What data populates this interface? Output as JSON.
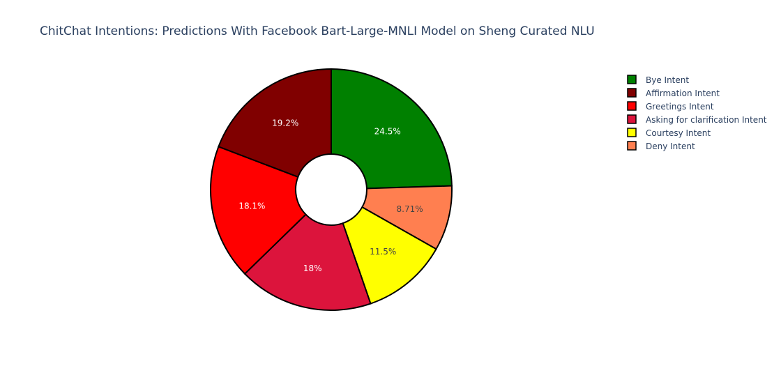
{
  "chart_data": {
    "type": "pie",
    "hole": true,
    "title": "ChitChat Intentions:  Predictions With Facebook Bart-Large-MNLI Model on Sheng Curated NLU",
    "legend_position": "top-right",
    "slices": [
      {
        "label": "Bye Intent",
        "value": 24.5,
        "text": "24.5%",
        "color": "#008000",
        "text_color": "#ffffff"
      },
      {
        "label": "Deny Intent",
        "value": 8.71,
        "text": "8.71%",
        "color": "#ff7f50",
        "text_color": "#444444"
      },
      {
        "label": "Courtesy Intent",
        "value": 11.5,
        "text": "11.5%",
        "color": "#ffff00",
        "text_color": "#444444"
      },
      {
        "label": "Asking for clarification Intent",
        "value": 18.0,
        "text": "18%",
        "color": "#dc143c",
        "text_color": "#ffffff"
      },
      {
        "label": "Greetings Intent",
        "value": 18.1,
        "text": "18.1%",
        "color": "#ff0000",
        "text_color": "#ffffff"
      },
      {
        "label": "Affirmation Intent",
        "value": 19.2,
        "text": "19.2%",
        "color": "#800000",
        "text_color": "#ffffff"
      }
    ],
    "legend": [
      {
        "label": "Bye Intent",
        "color": "#008000"
      },
      {
        "label": "Affirmation Intent",
        "color": "#800000"
      },
      {
        "label": "Greetings Intent",
        "color": "#ff0000"
      },
      {
        "label": "Asking for clarification Intent",
        "color": "#dc143c"
      },
      {
        "label": "Courtesy Intent",
        "color": "#ffff00"
      },
      {
        "label": "Deny Intent",
        "color": "#ff7f50"
      }
    ]
  }
}
